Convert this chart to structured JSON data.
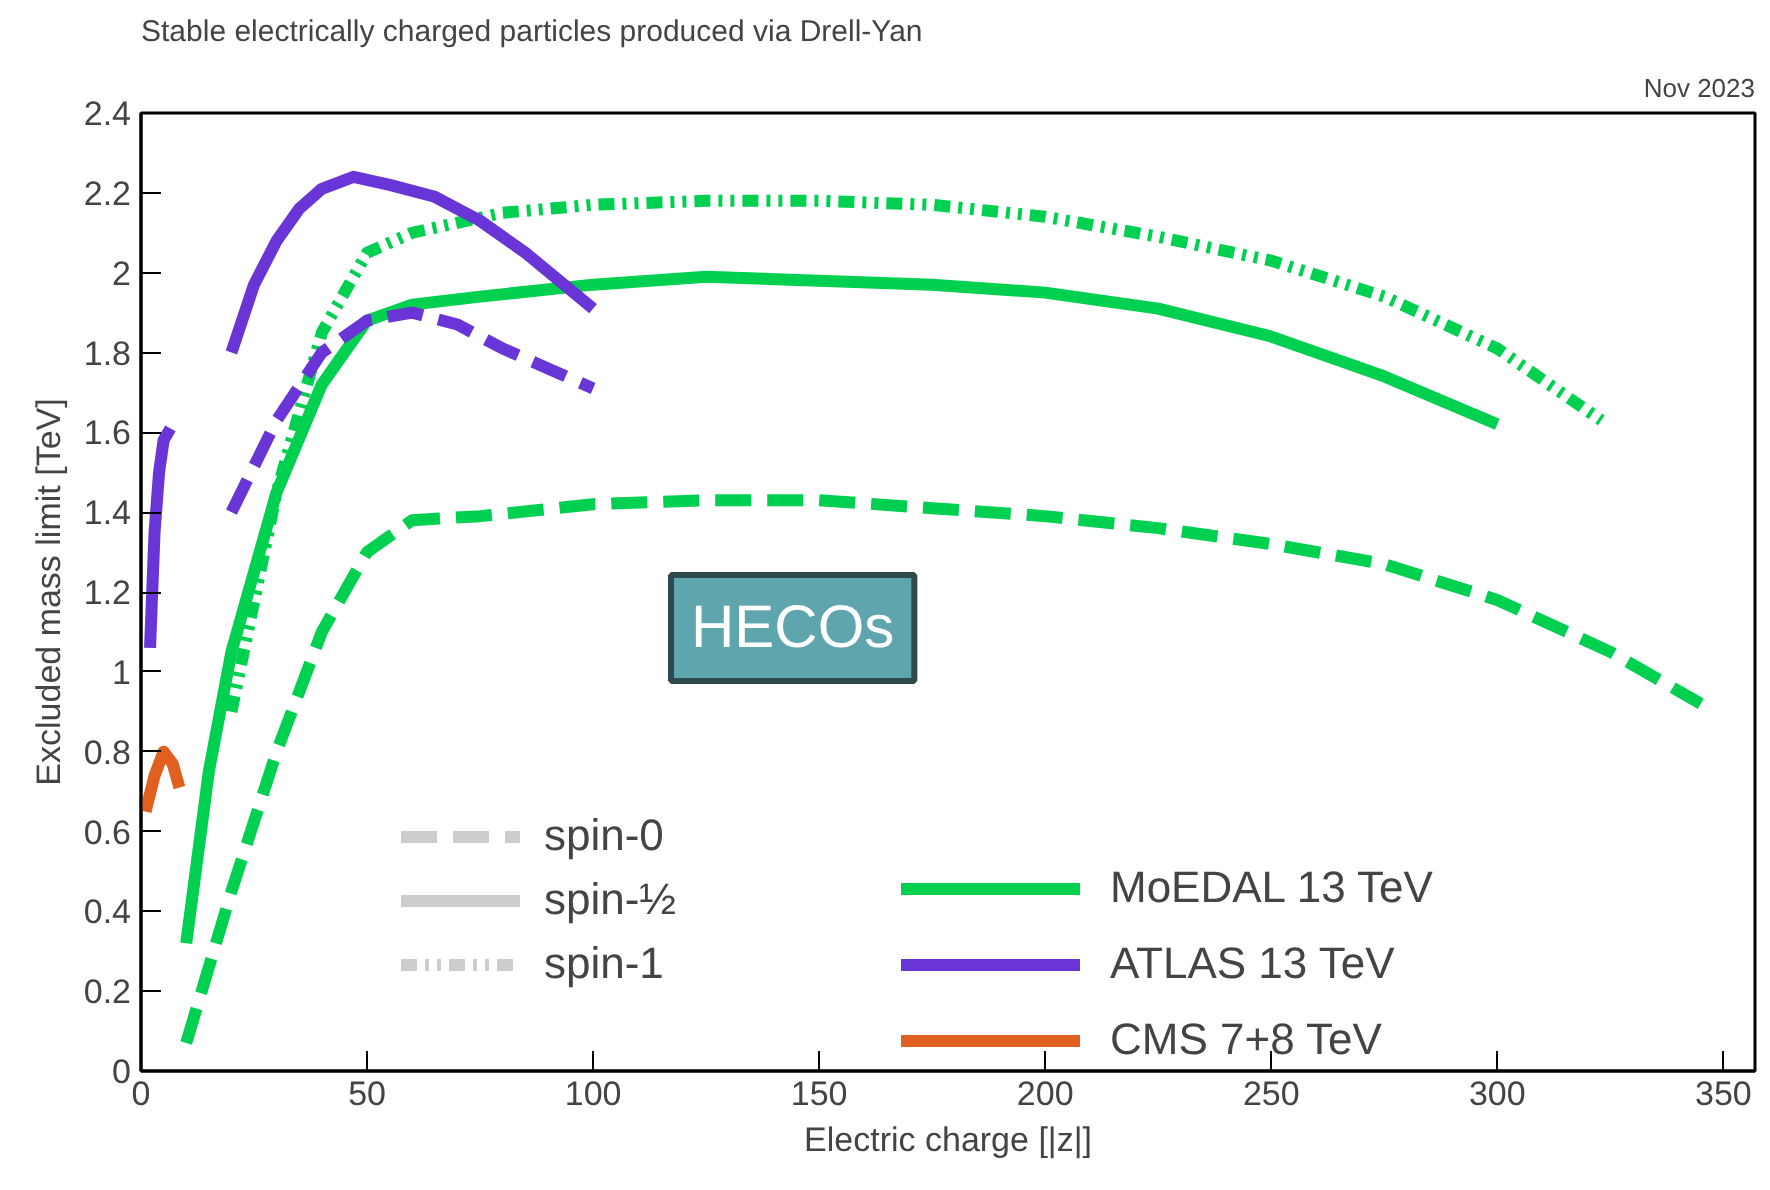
{
  "chart_data": {
    "type": "line",
    "title": "Stable electrically charged particles produced via Drell-Yan",
    "xlabel": "Electric charge [|z|]",
    "ylabel": "Excluded mass limit [TeV]",
    "annotations": [
      "Nov 2023",
      "HECOs",
      "spin-0",
      "spin-½",
      "spin-1"
    ],
    "xlim": [
      0,
      357
    ],
    "xticks": [
      0,
      50,
      100,
      150,
      200,
      250,
      300,
      350
    ],
    "ylim": [
      0,
      2.4
    ],
    "yticks": [
      0,
      0.2,
      0.4,
      0.6,
      0.8,
      1,
      1.2,
      1.4,
      1.6,
      1.8,
      2,
      2.2,
      2.4
    ],
    "grid": false,
    "legend": "bottom right",
    "series": [
      {
        "name": "MoEDAL 13 TeV",
        "color": "#00d050",
        "line_style": "dashed",
        "x": [
          10,
          20,
          30,
          40,
          50,
          60,
          75,
          100,
          125,
          150,
          175,
          200,
          225,
          250,
          275,
          300,
          325,
          345
        ],
        "values": [
          0.07,
          0.45,
          0.8,
          1.1,
          1.3,
          1.38,
          1.39,
          1.42,
          1.43,
          1.43,
          1.41,
          1.39,
          1.36,
          1.32,
          1.27,
          1.18,
          1.05,
          0.92
        ]
      },
      {
        "color": "#00d050",
        "line_style": "solid",
        "x": [
          10,
          15,
          20,
          30,
          40,
          50,
          60,
          75,
          100,
          125,
          150,
          175,
          200,
          225,
          250,
          275,
          300
        ],
        "values": [
          0.32,
          0.75,
          1.05,
          1.45,
          1.72,
          1.88,
          1.92,
          1.94,
          1.97,
          1.99,
          1.98,
          1.97,
          1.95,
          1.91,
          1.84,
          1.74,
          1.62
        ]
      },
      {
        "color": "#00d050",
        "line_style": "dotted",
        "x": [
          20,
          30,
          40,
          50,
          60,
          80,
          100,
          125,
          150,
          175,
          200,
          225,
          250,
          275,
          300,
          323
        ],
        "values": [
          0.9,
          1.45,
          1.85,
          2.05,
          2.1,
          2.15,
          2.17,
          2.18,
          2.18,
          2.17,
          2.14,
          2.09,
          2.03,
          1.94,
          1.81,
          1.63
        ]
      },
      {
        "name": "ATLAS 13 TeV",
        "color": "#6a35d6",
        "line_style": "dashed",
        "x": [
          20,
          30,
          40,
          50,
          60,
          70,
          80,
          90,
          100
        ],
        "values": [
          1.4,
          1.63,
          1.8,
          1.88,
          1.9,
          1.87,
          1.81,
          1.76,
          1.71
        ]
      },
      {
        "color": "#6a35d6",
        "line_style": "solid",
        "x": [
          20,
          25,
          30,
          35,
          40,
          47,
          55,
          65,
          75,
          85,
          100
        ],
        "values": [
          1.8,
          1.97,
          2.08,
          2.16,
          2.21,
          2.24,
          2.22,
          2.19,
          2.13,
          2.05,
          1.91
        ]
      },
      {
        "color": "#6a35d6",
        "line_style": "solid",
        "x": [
          2,
          3,
          4,
          5,
          6.5
        ],
        "values": [
          1.06,
          1.35,
          1.5,
          1.58,
          1.61
        ]
      },
      {
        "name": "CMS 7+8 TeV",
        "color": "#e06020",
        "line_style": "solid",
        "x": [
          1,
          3,
          5,
          7,
          8.5
        ],
        "values": [
          0.65,
          0.74,
          0.8,
          0.77,
          0.71
        ]
      }
    ]
  }
}
